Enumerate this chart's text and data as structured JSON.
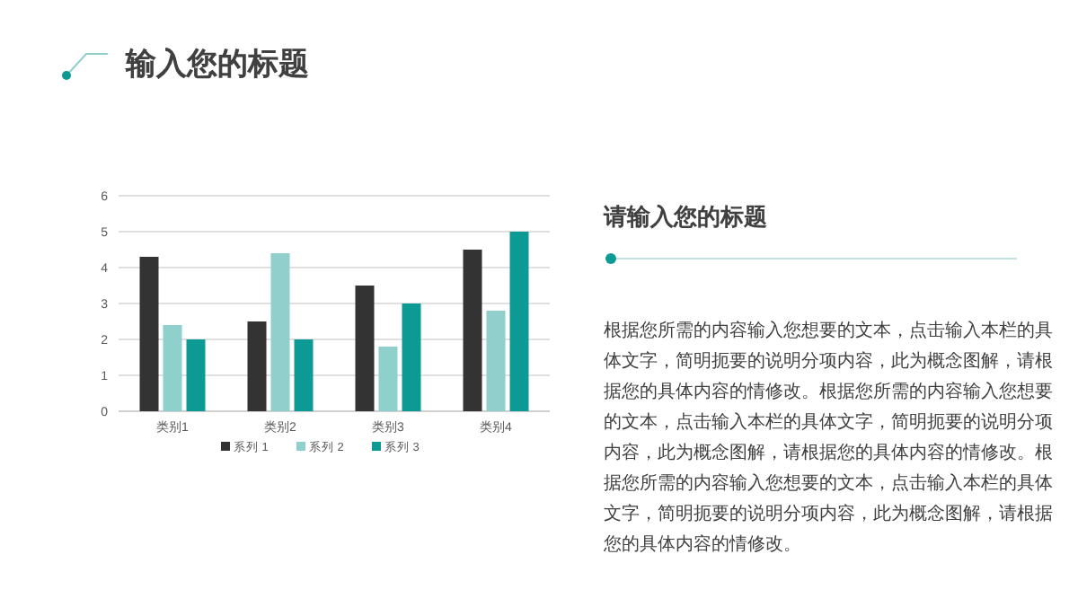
{
  "chart_data": [
    {
      "type": "bar",
      "title": "输入您的标题",
      "categories": [
        "类别1",
        "类别2",
        "类别3",
        "类别4"
      ],
      "series": [
        {
          "name": "系列 1",
          "color": "#333333",
          "values": [
            4.3,
            2.5,
            3.5,
            4.5
          ]
        },
        {
          "name": "系列 2",
          "color": "#8fd0cc",
          "values": [
            2.4,
            4.4,
            1.8,
            2.8
          ]
        },
        {
          "name": "系列 3",
          "color": "#0e9a94",
          "values": [
            2,
            2,
            3,
            5
          ]
        }
      ],
      "ylim": [
        0,
        6
      ],
      "yticks": [
        0,
        1,
        2,
        3,
        4,
        5,
        6
      ],
      "grid": "y",
      "legend": "bottom"
    },
    {
      "type": "other",
      "title": "请输入您的标题",
      "annotations": [
        "根据您所需的内容输入您想要的文本，点击输入本栏的具体文字，简明扼要的说明分项内容，此为概念图解，请根据您的具体内容的情修改。根据您所需的内容输入您想要的文本，点击输入本栏的具体文字，简明扼要的说明分项内容，此为概念图解，请根据您的具体内容的情修改。根据您所需的内容输入您想要的文本，点击输入本栏的具体文字，简明扼要的说明分项内容，此为概念图解，请根据您的具体内容的情修改。"
      ]
    }
  ]
}
